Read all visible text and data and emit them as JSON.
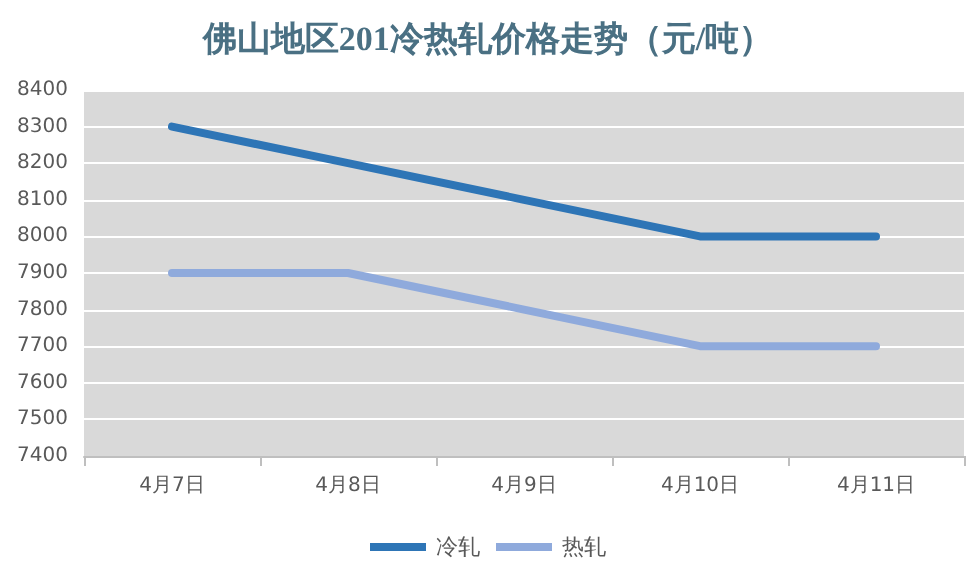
{
  "chart_data": {
    "type": "line",
    "title": "佛山地区201冷热轧价格走势（元/吨）",
    "categories": [
      "4月7日",
      "4月8日",
      "4月9日",
      "4月10日",
      "4月11日"
    ],
    "series": [
      {
        "name": "冷轧",
        "color": "#2e75b6",
        "values": [
          8300,
          8200,
          8100,
          8000,
          8000
        ]
      },
      {
        "name": "热轧",
        "color": "#8faadc",
        "values": [
          7900,
          7900,
          7800,
          7700,
          7700
        ]
      }
    ],
    "ylim": [
      7400,
      8400
    ],
    "yticks": [
      7400,
      7500,
      7600,
      7700,
      7800,
      7900,
      8000,
      8100,
      8200,
      8300,
      8400
    ],
    "grid": "y",
    "legend": "bottom",
    "marker": "none",
    "line_style": "solid"
  }
}
